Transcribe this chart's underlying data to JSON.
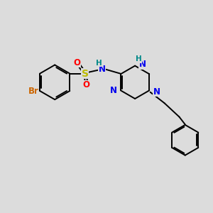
{
  "background_color": "#dcdcdc",
  "bond_color": "#000000",
  "atom_colors": {
    "Br": "#cc6600",
    "S": "#bbbb00",
    "O": "#ff0000",
    "N": "#0000ee",
    "H": "#008888",
    "C": "#000000"
  },
  "font_size": 8.5,
  "figsize": [
    3.0,
    3.0
  ],
  "dpi": 100,
  "xlim": [
    0,
    10
  ],
  "ylim": [
    0,
    10
  ]
}
